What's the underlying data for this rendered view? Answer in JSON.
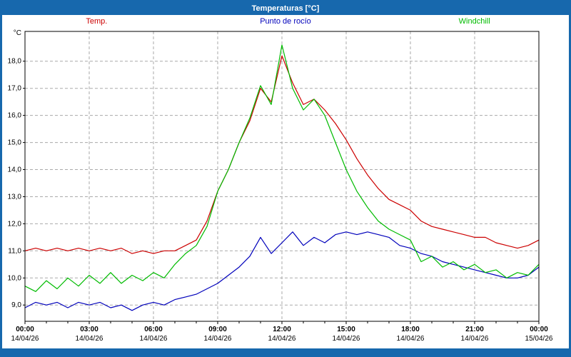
{
  "window": {
    "title": "Temperaturas [°C]"
  },
  "legend": [
    {
      "label": "Temp.",
      "color": "#cc0000"
    },
    {
      "label": "Punto de rocío",
      "color": "#0000bb"
    },
    {
      "label": "Windchill",
      "color": "#00bb00"
    }
  ],
  "chart_data": {
    "type": "line",
    "title": "Temperaturas [°C]",
    "xlabel": "",
    "ylabel": "°C",
    "ylim": [
      8.4,
      19.1
    ],
    "grid": true,
    "legend_position": "top",
    "x_start_hour": 0,
    "x_step_hour": 0.5,
    "yticks": [
      {
        "value": 9,
        "label": "9,0"
      },
      {
        "value": 10,
        "label": "10,0"
      },
      {
        "value": 11,
        "label": "11,0"
      },
      {
        "value": 12,
        "label": "12,0"
      },
      {
        "value": 13,
        "label": "13,0"
      },
      {
        "value": 14,
        "label": "14,0"
      },
      {
        "value": 15,
        "label": "15,0"
      },
      {
        "value": 16,
        "label": "16,0"
      },
      {
        "value": 17,
        "label": "17,0"
      },
      {
        "value": 18,
        "label": "18,0"
      }
    ],
    "xticks": [
      {
        "hour": 0,
        "time": "00:00",
        "date": "14/04/26"
      },
      {
        "hour": 3,
        "time": "03:00",
        "date": "14/04/26"
      },
      {
        "hour": 6,
        "time": "06:00",
        "date": "14/04/26"
      },
      {
        "hour": 9,
        "time": "09:00",
        "date": "14/04/26"
      },
      {
        "hour": 12,
        "time": "12:00",
        "date": "14/04/26"
      },
      {
        "hour": 15,
        "time": "15:00",
        "date": "14/04/26"
      },
      {
        "hour": 18,
        "time": "18:00",
        "date": "14/04/26"
      },
      {
        "hour": 21,
        "time": "21:00",
        "date": "14/04/26"
      },
      {
        "hour": 24,
        "time": "00:00",
        "date": "15/04/26"
      }
    ],
    "series": [
      {
        "name": "Temp.",
        "color": "#cc0000",
        "values": [
          11.0,
          11.1,
          11.0,
          11.1,
          11.0,
          11.1,
          11.0,
          11.1,
          11.0,
          11.1,
          10.9,
          11.0,
          10.9,
          11.0,
          11.0,
          11.2,
          11.4,
          12.1,
          13.2,
          14.0,
          15.0,
          15.8,
          17.0,
          16.5,
          18.2,
          17.2,
          16.4,
          16.6,
          16.2,
          15.7,
          15.1,
          14.4,
          13.8,
          13.3,
          12.9,
          12.7,
          12.5,
          12.1,
          11.9,
          11.8,
          11.7,
          11.6,
          11.5,
          11.5,
          11.3,
          11.2,
          11.1,
          11.2,
          11.4
        ]
      },
      {
        "name": "Punto de rocío",
        "color": "#0000bb",
        "values": [
          8.9,
          9.1,
          9.0,
          9.1,
          8.9,
          9.1,
          9.0,
          9.1,
          8.9,
          9.0,
          8.8,
          9.0,
          9.1,
          9.0,
          9.2,
          9.3,
          9.4,
          9.6,
          9.8,
          10.1,
          10.4,
          10.8,
          11.5,
          10.9,
          11.3,
          11.7,
          11.2,
          11.5,
          11.3,
          11.6,
          11.7,
          11.6,
          11.7,
          11.6,
          11.5,
          11.2,
          11.1,
          10.9,
          10.8,
          10.6,
          10.5,
          10.4,
          10.3,
          10.2,
          10.1,
          10.0,
          10.0,
          10.1,
          10.4
        ]
      },
      {
        "name": "Windchill",
        "color": "#00bb00",
        "values": [
          9.7,
          9.5,
          9.9,
          9.6,
          10.0,
          9.7,
          10.1,
          9.8,
          10.2,
          9.8,
          10.1,
          9.9,
          10.2,
          10.0,
          10.5,
          10.9,
          11.2,
          11.9,
          13.2,
          14.0,
          15.0,
          15.9,
          17.1,
          16.4,
          18.6,
          17.0,
          16.2,
          16.6,
          16.0,
          15.0,
          14.0,
          13.2,
          12.6,
          12.1,
          11.8,
          11.6,
          11.4,
          10.6,
          10.8,
          10.4,
          10.6,
          10.3,
          10.5,
          10.2,
          10.3,
          10.0,
          10.2,
          10.1,
          10.5
        ]
      }
    ]
  }
}
